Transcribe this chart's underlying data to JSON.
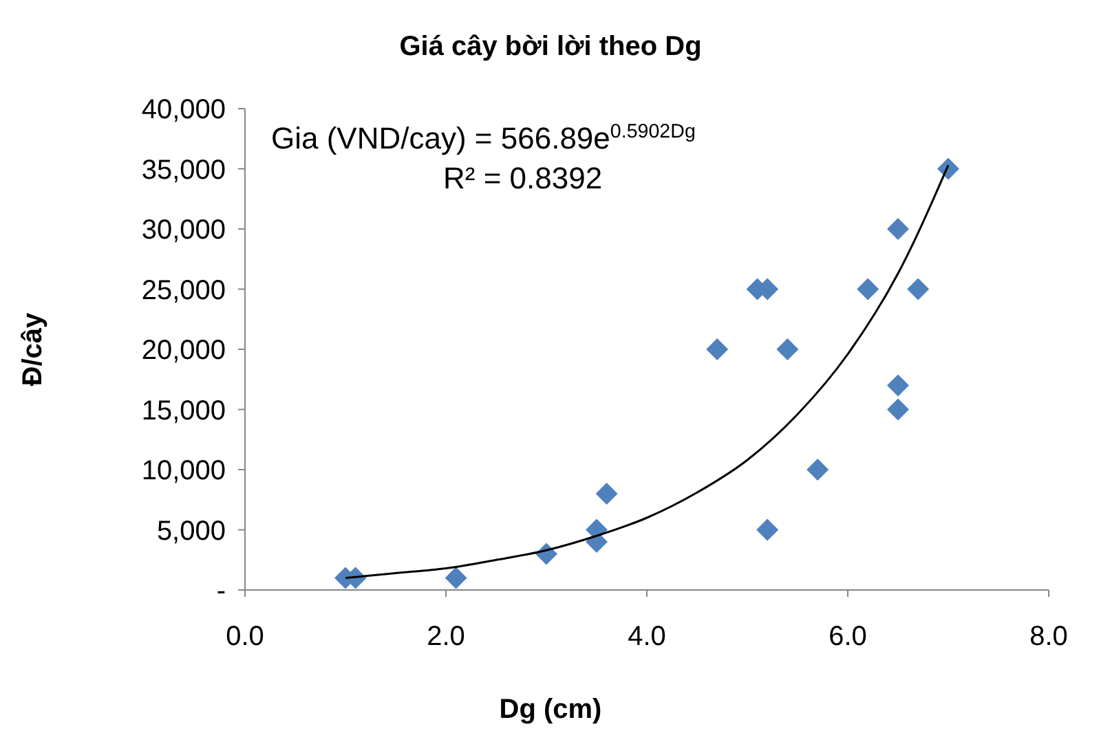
{
  "chart_data": {
    "type": "scatter",
    "title": "Giá cây bời lời theo Dg",
    "xlabel": "Dg (cm)",
    "ylabel": "Đ/cây",
    "xlim": [
      0,
      8
    ],
    "xticks": [
      {
        "value": 0,
        "label": "0.0"
      },
      {
        "value": 2,
        "label": "2.0"
      },
      {
        "value": 4,
        "label": "4.0"
      },
      {
        "value": 6,
        "label": "6.0"
      },
      {
        "value": 8,
        "label": "8.0"
      }
    ],
    "ylim": [
      0,
      40000
    ],
    "yticks": [
      {
        "value": 0,
        "label": "-"
      },
      {
        "value": 5000,
        "label": "5,000"
      },
      {
        "value": 10000,
        "label": "10,000"
      },
      {
        "value": 15000,
        "label": "15,000"
      },
      {
        "value": 20000,
        "label": "20,000"
      },
      {
        "value": 25000,
        "label": "25,000"
      },
      {
        "value": 30000,
        "label": "30,000"
      },
      {
        "value": 35000,
        "label": "35,000"
      },
      {
        "value": 40000,
        "label": "40,000"
      }
    ],
    "grid": false,
    "marker": "diamond",
    "series": [
      {
        "color": "#4f81bd",
        "x": [
          1.0,
          1.1,
          2.1,
          3.0,
          3.5,
          3.5,
          3.6,
          4.7,
          5.1,
          5.2,
          5.2,
          5.4,
          5.7,
          6.2,
          6.5,
          6.5,
          6.5,
          6.7,
          7.0
        ],
        "values": [
          1000,
          1000,
          1000,
          3000,
          5000,
          4000,
          8000,
          20000,
          25000,
          25000,
          5000,
          20000,
          10000,
          25000,
          30000,
          17000,
          15000,
          25000,
          35000
        ]
      },
      {
        "type": "line",
        "color": "#000000",
        "marker": "none",
        "line_style": "solid",
        "x": [
          1,
          1.5,
          2,
          2.5,
          3,
          3.5,
          4,
          4.5,
          5,
          5.5,
          6,
          6.5,
          7
        ],
        "values": [
          1000,
          1400,
          1800,
          2500,
          3300,
          4500,
          6000,
          8100,
          10800,
          14600,
          19600,
          26300,
          35300
        ]
      }
    ],
    "annotations": [
      "Gia (VND/cay) = 566.89e$^{0.5902Dg}$",
      "R² = 0.8392"
    ]
  }
}
